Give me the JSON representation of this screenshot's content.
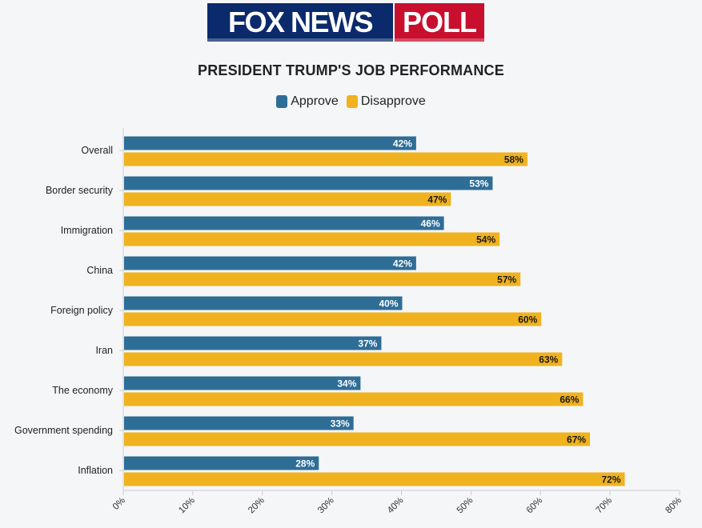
{
  "header": {
    "logo_text": "FOX NEWS",
    "logo_badge": "POLL"
  },
  "colors": {
    "approve": "#2e6e96",
    "disapprove": "#f0b21e",
    "logo_blue": "#0b2a6b",
    "logo_red": "#c8102e"
  },
  "chart_data": {
    "type": "bar",
    "orientation": "horizontal",
    "title": "PRESIDENT TRUMP'S JOB PERFORMANCE",
    "categories": [
      "Overall",
      "Border security",
      "Immigration",
      "China",
      "Foreign policy",
      "Iran",
      "The economy",
      "Government spending",
      "Inflation"
    ],
    "series": [
      {
        "name": "Approve",
        "values": [
          42,
          53,
          46,
          42,
          40,
          37,
          34,
          33,
          28
        ]
      },
      {
        "name": "Disapprove",
        "values": [
          58,
          47,
          54,
          57,
          60,
          63,
          66,
          67,
          72
        ]
      }
    ],
    "value_suffix": "%",
    "xlim": [
      0,
      80
    ],
    "xticks": [
      "0%",
      "10%",
      "20%",
      "30%",
      "40%",
      "50%",
      "60%",
      "70%",
      "80%"
    ],
    "grid": false,
    "legend_position": "top-center"
  }
}
